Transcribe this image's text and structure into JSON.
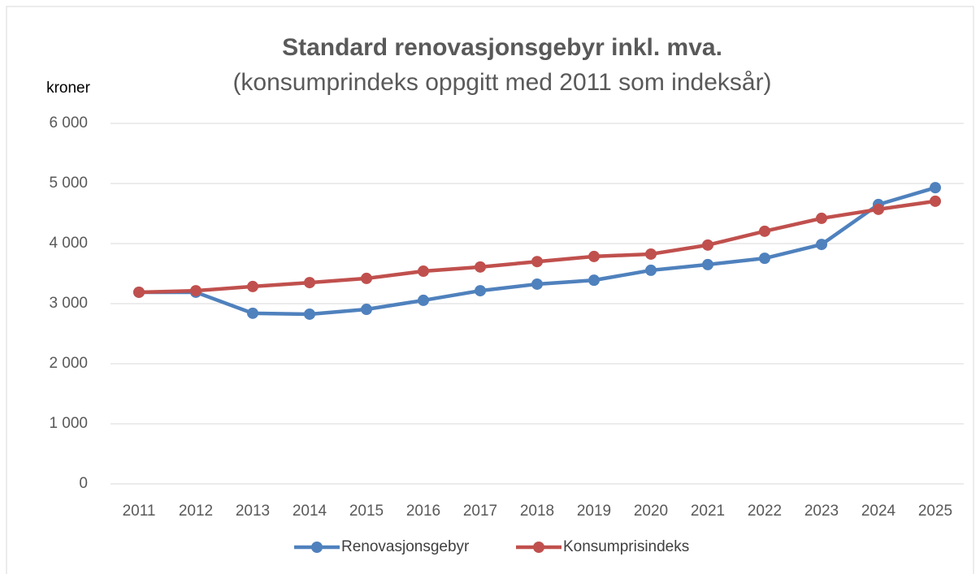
{
  "chart_data": {
    "type": "line",
    "title": "Standard renovasjonsgebyr inkl. mva.",
    "subtitle": "(konsumprindeks oppgitt med 2011 som indeksår)",
    "y_label": "kroner",
    "categories": [
      "2011",
      "2012",
      "2013",
      "2014",
      "2015",
      "2016",
      "2017",
      "2018",
      "2019",
      "2020",
      "2021",
      "2022",
      "2023",
      "2024",
      "2025"
    ],
    "series": [
      {
        "name": "Renovasjonsgebyr",
        "color": "#4f81bd",
        "values": [
          3190,
          3190,
          2840,
          2825,
          2905,
          3055,
          3215,
          3325,
          3390,
          3555,
          3650,
          3755,
          3985,
          4650,
          4930
        ]
      },
      {
        "name": "Konsumprisindeks",
        "color": "#c0504d",
        "values": [
          3190,
          3215,
          3285,
          3350,
          3420,
          3540,
          3610,
          3700,
          3785,
          3825,
          3975,
          4205,
          4420,
          4570,
          4705
        ]
      }
    ],
    "ylim": [
      0,
      6000
    ],
    "yticks": [
      0,
      {
        "value": 1000,
        "label": "1 000"
      },
      {
        "value": 2000,
        "label": "2 000"
      },
      {
        "value": 3000,
        "label": "3 000"
      },
      {
        "value": 4000,
        "label": "4 000"
      },
      {
        "value": 5000,
        "label": "5 000"
      },
      {
        "value": 6000,
        "label": "6 000"
      }
    ],
    "grid": true,
    "legend": "bottom"
  }
}
